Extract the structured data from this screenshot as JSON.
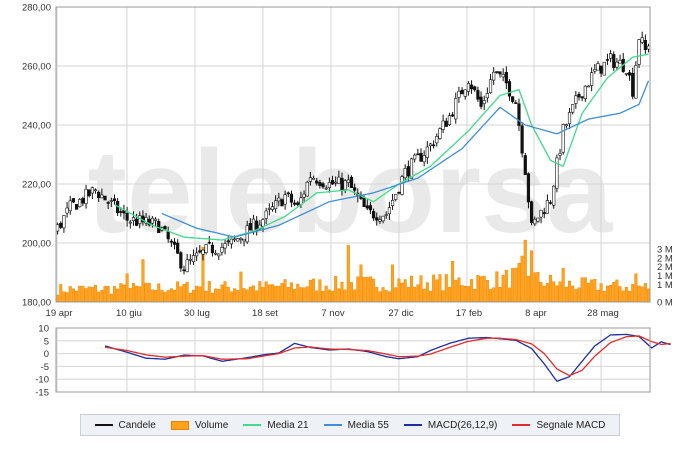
{
  "watermark": "teleborsa",
  "colors": {
    "candle": "#111111",
    "volume_fill": "#ffa31a",
    "volume_border": "#f07e00",
    "ma21": "#3fdc8a",
    "ma55": "#3e8fd6",
    "macd": "#1b2f9e",
    "signal": "#e32d2d",
    "grid": "#d5d5d5",
    "frame": "#9a9a9a",
    "watermark": "#e9e9e9"
  },
  "legend": [
    {
      "key": "candle",
      "label": "Candele",
      "kind": "line"
    },
    {
      "key": "volume",
      "label": "Volume",
      "kind": "box"
    },
    {
      "key": "ma21",
      "label": "Media 21",
      "kind": "line"
    },
    {
      "key": "ma55",
      "label": "Media 55",
      "kind": "line"
    },
    {
      "key": "macd",
      "label": "MACD(26,12,9)",
      "kind": "line"
    },
    {
      "key": "signal",
      "label": "Segnale MACD",
      "kind": "line"
    }
  ],
  "chart_data": [
    {
      "type": "candlestick",
      "price_axis": {
        "min": 180,
        "max": 280,
        "ticks": [
          "280,00",
          "260,00",
          "240,00",
          "220,00",
          "200,00",
          "180,00"
        ]
      },
      "volume_axis": {
        "ticks": [
          "3 M",
          "2 M",
          "2 M",
          "1 M",
          "1 M",
          "0 M"
        ]
      },
      "x_ticks": [
        "19 apr",
        "10 giu",
        "30 lug",
        "18 set",
        "7 nov",
        "27 dic",
        "17 feb",
        "8 apr",
        "28 mag"
      ],
      "grid": true,
      "close_profile": [
        [
          0,
          205
        ],
        [
          4,
          212
        ],
        [
          12,
          218
        ],
        [
          22,
          208
        ],
        [
          32,
          206
        ],
        [
          40,
          192
        ],
        [
          48,
          198
        ],
        [
          54,
          199
        ],
        [
          60,
          204
        ],
        [
          66,
          209
        ],
        [
          72,
          216
        ],
        [
          76,
          212
        ],
        [
          80,
          223
        ],
        [
          86,
          220
        ],
        [
          92,
          220
        ],
        [
          98,
          210
        ],
        [
          104,
          210
        ],
        [
          110,
          224
        ],
        [
          118,
          233
        ],
        [
          124,
          243
        ],
        [
          130,
          256
        ],
        [
          134,
          246
        ],
        [
          138,
          258
        ],
        [
          142,
          254
        ],
        [
          145,
          248
        ],
        [
          148,
          225
        ],
        [
          150,
          205
        ],
        [
          152,
          209
        ],
        [
          156,
          215
        ],
        [
          160,
          238
        ],
        [
          165,
          250
        ],
        [
          170,
          258
        ],
        [
          175,
          262
        ],
        [
          180,
          260
        ],
        [
          182,
          252
        ],
        [
          184,
          270
        ],
        [
          186,
          265
        ],
        [
          187,
          268
        ]
      ],
      "ma21_profile": [
        [
          18,
          213
        ],
        [
          30,
          206
        ],
        [
          40,
          202
        ],
        [
          52,
          201
        ],
        [
          62,
          204
        ],
        [
          72,
          209
        ],
        [
          82,
          217
        ],
        [
          92,
          218
        ],
        [
          100,
          214
        ],
        [
          108,
          220
        ],
        [
          118,
          226
        ],
        [
          130,
          238
        ],
        [
          140,
          250
        ],
        [
          146,
          252
        ],
        [
          150,
          240
        ],
        [
          156,
          228
        ],
        [
          160,
          226
        ],
        [
          166,
          244
        ],
        [
          174,
          256
        ],
        [
          182,
          263
        ],
        [
          187,
          264
        ]
      ],
      "ma55_profile": [
        [
          33,
          210
        ],
        [
          44,
          205
        ],
        [
          56,
          202
        ],
        [
          70,
          206
        ],
        [
          86,
          214
        ],
        [
          100,
          217
        ],
        [
          114,
          222
        ],
        [
          128,
          232
        ],
        [
          140,
          246
        ],
        [
          148,
          240
        ],
        [
          158,
          237
        ],
        [
          168,
          242
        ],
        [
          178,
          244
        ],
        [
          184,
          247
        ],
        [
          187,
          255
        ]
      ],
      "volume_profile": [
        [
          0,
          0.72
        ],
        [
          30,
          0.78
        ],
        [
          45,
          0.86
        ],
        [
          60,
          0.82
        ],
        [
          80,
          0.97
        ],
        [
          100,
          1.05
        ],
        [
          120,
          1.12
        ],
        [
          130,
          1.2
        ],
        [
          140,
          1.25
        ],
        [
          145,
          1.45
        ],
        [
          148,
          1.65
        ],
        [
          150,
          1.5
        ],
        [
          152,
          1.25
        ],
        [
          160,
          1.0
        ],
        [
          175,
          0.9
        ],
        [
          187,
          0.85
        ]
      ],
      "volume_spikes": [
        [
          22,
          1.6
        ],
        [
          27,
          2.4
        ],
        [
          46,
          3.1
        ],
        [
          58,
          1.7
        ],
        [
          92,
          3.2
        ],
        [
          96,
          2.1
        ],
        [
          106,
          2.1
        ],
        [
          125,
          2.3
        ],
        [
          147,
          2.6
        ],
        [
          148,
          3.5
        ],
        [
          150,
          2.9
        ],
        [
          160,
          1.9
        ],
        [
          183,
          1.6
        ]
      ]
    },
    {
      "type": "line",
      "title": "MACD(26,12,9)",
      "y_axis": {
        "min": -15,
        "max": 10,
        "ticks": [
          "10",
          "5",
          "0",
          "-5",
          "-10",
          "-15"
        ]
      },
      "series": [
        {
          "name": "MACD(26,12,9)",
          "profile": [
            [
              15,
              3
            ],
            [
              22,
              0.5
            ],
            [
              28,
              -1.8
            ],
            [
              34,
              -2.2
            ],
            [
              40,
              -0.6
            ],
            [
              46,
              -0.9
            ],
            [
              52,
              -3.0
            ],
            [
              60,
              -1.6
            ],
            [
              66,
              -0.3
            ],
            [
              70,
              0.2
            ],
            [
              75,
              4.0
            ],
            [
              80,
              2.4
            ],
            [
              86,
              1.4
            ],
            [
              92,
              1.8
            ],
            [
              98,
              0.8
            ],
            [
              104,
              -1.2
            ],
            [
              108,
              -2.0
            ],
            [
              114,
              -1.2
            ],
            [
              118,
              1.2
            ],
            [
              124,
              4.0
            ],
            [
              130,
              6.0
            ],
            [
              136,
              6.3
            ],
            [
              140,
              5.8
            ],
            [
              145,
              5.2
            ],
            [
              150,
              2.0
            ],
            [
              154,
              -4.0
            ],
            [
              158,
              -10.8
            ],
            [
              162,
              -9.0
            ],
            [
              166,
              -3.0
            ],
            [
              170,
              3.0
            ],
            [
              175,
              7.3
            ],
            [
              180,
              7.5
            ],
            [
              184,
              6.7
            ],
            [
              188,
              2.2
            ],
            [
              191,
              4.6
            ],
            [
              194,
              3.5
            ]
          ]
        },
        {
          "name": "Segnale MACD",
          "profile": [
            [
              15,
              2.5
            ],
            [
              22,
              1.2
            ],
            [
              28,
              -0.5
            ],
            [
              34,
              -1.4
            ],
            [
              40,
              -1.0
            ],
            [
              46,
              -0.8
            ],
            [
              52,
              -2.2
            ],
            [
              60,
              -2.0
            ],
            [
              66,
              -0.8
            ],
            [
              70,
              0.0
            ],
            [
              75,
              2.2
            ],
            [
              80,
              2.6
            ],
            [
              86,
              1.8
            ],
            [
              92,
              1.6
            ],
            [
              98,
              1.2
            ],
            [
              104,
              -0.2
            ],
            [
              108,
              -1.2
            ],
            [
              114,
              -1.0
            ],
            [
              118,
              -0.2
            ],
            [
              124,
              2.4
            ],
            [
              130,
              4.8
            ],
            [
              136,
              6.0
            ],
            [
              140,
              6.0
            ],
            [
              145,
              5.5
            ],
            [
              150,
              3.8
            ],
            [
              154,
              0.0
            ],
            [
              158,
              -6.0
            ],
            [
              162,
              -8.6
            ],
            [
              166,
              -6.5
            ],
            [
              170,
              -1.0
            ],
            [
              175,
              4.3
            ],
            [
              180,
              6.6
            ],
            [
              184,
              6.9
            ],
            [
              188,
              4.7
            ],
            [
              191,
              3.6
            ],
            [
              194,
              3.9
            ]
          ]
        }
      ]
    }
  ]
}
